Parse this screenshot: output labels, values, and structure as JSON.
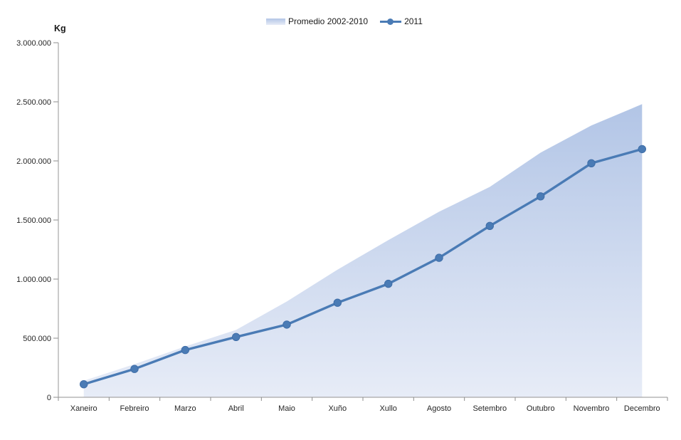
{
  "chart": {
    "y_axis_title": "Kg",
    "legend": {
      "area_label": "Promedio 2002-2010",
      "line_label": "2011"
    }
  },
  "chart_data": {
    "type": "area+line",
    "title": "",
    "categories": [
      "Xaneiro",
      "Febreiro",
      "Marzo",
      "Abril",
      "Maio",
      "Xuño",
      "Xullo",
      "Agosto",
      "Setembro",
      "Outubro",
      "Novembro",
      "Decembro"
    ],
    "series": [
      {
        "name": "Promedio 2002-2010",
        "type": "area",
        "values": [
          140000,
          280000,
          430000,
          570000,
          810000,
          1080000,
          1330000,
          1570000,
          1780000,
          2070000,
          2300000,
          2480000
        ]
      },
      {
        "name": "2011",
        "type": "line",
        "values": [
          110000,
          240000,
          400000,
          510000,
          615000,
          800000,
          960000,
          1180000,
          1450000,
          1700000,
          1980000,
          2100000
        ]
      }
    ],
    "xlabel": "",
    "ylabel": "Kg",
    "ylim": [
      0,
      3000000
    ],
    "ytick_step": 500000,
    "ytick_labels": [
      "0",
      "500.000",
      "1.000.000",
      "1.500.000",
      "2.000.000",
      "2.500.000",
      "3.000.000"
    ],
    "grid": false,
    "legend_position": "top-center",
    "colors": {
      "line": "#4a7bb5",
      "marker_edge": "#3f6ea8",
      "area_top": "#b2c5e6",
      "area_bottom": "#e7ecf7",
      "axis": "#a6a6a6",
      "tick": "#8c8c8c",
      "text": "#262626"
    }
  }
}
